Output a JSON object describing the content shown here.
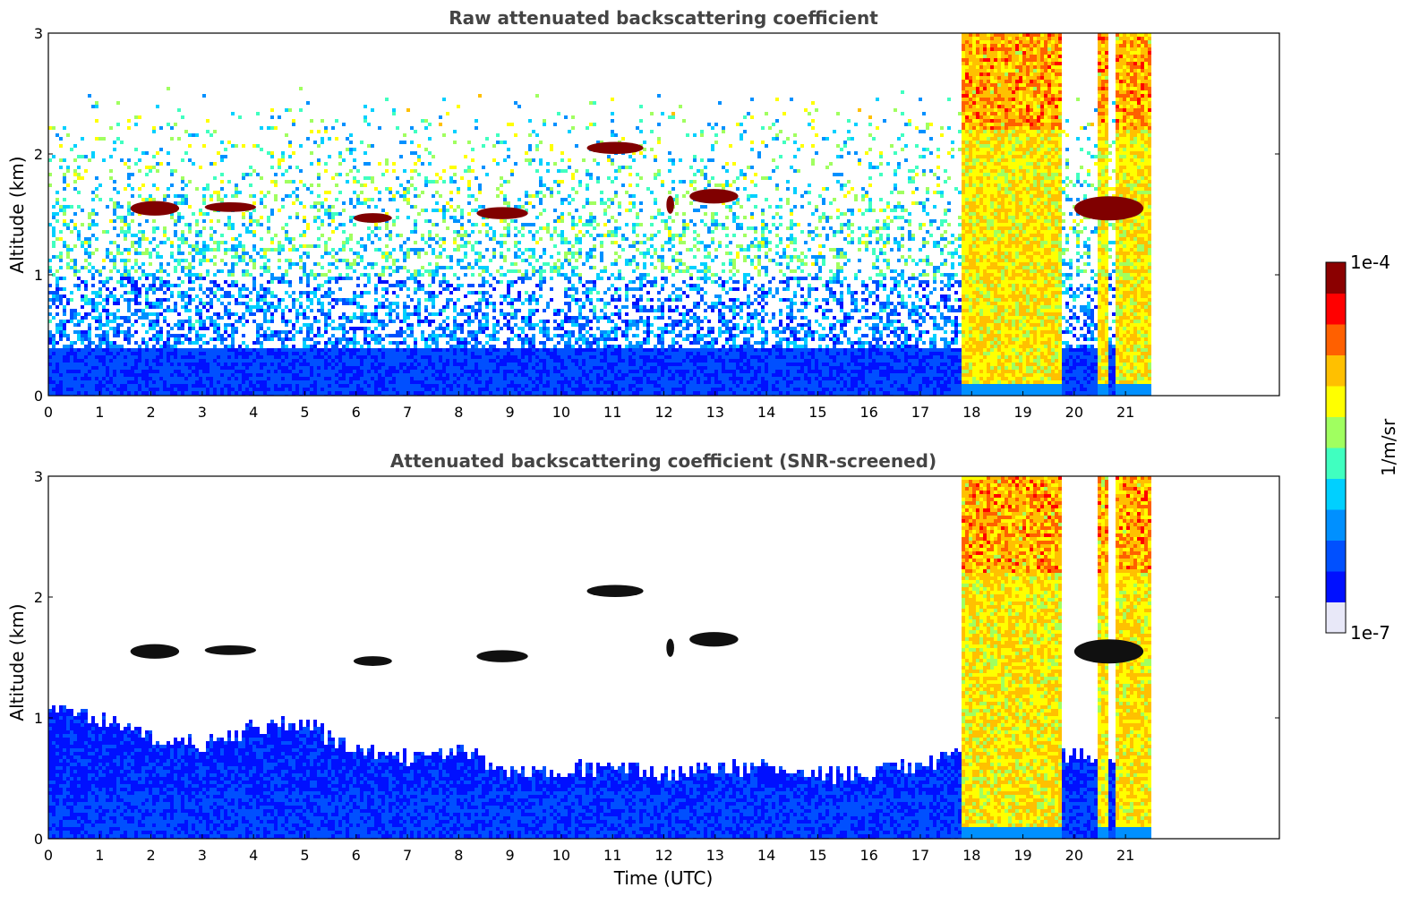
{
  "colors": {
    "cmap": [
      "#e8e8f8",
      "#0010ff",
      "#0050ff",
      "#0090ff",
      "#00d0ff",
      "#40ffc0",
      "#a0ff60",
      "#ffff00",
      "#ffc000",
      "#ff6000",
      "#ff0000",
      "#8b0000"
    ],
    "cloud_dark": "#800000",
    "cloud_black": "#101010",
    "background": "#ffffff"
  },
  "chart_data": [
    {
      "type": "heatmap",
      "title": "Raw attenuated backscattering coefficient",
      "xlabel": "",
      "ylabel": "Altitude (km)",
      "xlim": [
        0,
        24
      ],
      "ylim": [
        0,
        3
      ],
      "xticks": [
        "0",
        "1",
        "2",
        "3",
        "4",
        "5",
        "6",
        "7",
        "8",
        "9",
        "10",
        "11",
        "12",
        "13",
        "14",
        "15",
        "16",
        "17",
        "18",
        "19",
        "20",
        "21"
      ],
      "yticks": [
        "0",
        "1",
        "2",
        "3"
      ],
      "data_end_time": 21.45,
      "screened": false,
      "boundary_layer_top_km": 0.45,
      "cloud_layers": [
        {
          "t0": 1.6,
          "t1": 2.55,
          "alt": 1.55,
          "thickness": 0.12
        },
        {
          "t0": 3.05,
          "t1": 4.05,
          "alt": 1.56,
          "thickness": 0.08
        },
        {
          "t0": 5.95,
          "t1": 6.7,
          "alt": 1.47,
          "thickness": 0.08
        },
        {
          "t0": 8.35,
          "t1": 9.35,
          "alt": 1.51,
          "thickness": 0.1
        },
        {
          "t0": 10.5,
          "t1": 11.6,
          "alt": 2.05,
          "thickness": 0.1
        },
        {
          "t0": 12.05,
          "t1": 12.2,
          "alt": 1.58,
          "thickness": 0.15
        },
        {
          "t0": 12.5,
          "t1": 13.45,
          "alt": 1.65,
          "thickness": 0.12
        },
        {
          "t0": 20.0,
          "t1": 21.35,
          "alt": 1.55,
          "thickness": 0.2
        }
      ],
      "high_signal_intervals": [
        [
          17.8,
          19.7
        ],
        [
          20.45,
          20.65
        ],
        [
          20.8,
          21.45
        ]
      ]
    },
    {
      "type": "heatmap",
      "title": "Attenuated backscattering coefficient (SNR-screened)",
      "xlabel": "Time (UTC)",
      "ylabel": "Altitude (km)",
      "xlim": [
        0,
        24
      ],
      "ylim": [
        0,
        3
      ],
      "xticks": [
        "0",
        "1",
        "2",
        "3",
        "4",
        "5",
        "6",
        "7",
        "8",
        "9",
        "10",
        "11",
        "12",
        "13",
        "14",
        "15",
        "16",
        "17",
        "18",
        "19",
        "20",
        "21"
      ],
      "yticks": [
        "0",
        "1",
        "2",
        "3"
      ],
      "data_end_time": 21.45,
      "screened": true,
      "screened_top_profile": [
        [
          0,
          1.15
        ],
        [
          1,
          1.0
        ],
        [
          2,
          0.85
        ],
        [
          3,
          0.8
        ],
        [
          4,
          0.95
        ],
        [
          5,
          0.95
        ],
        [
          6,
          0.75
        ],
        [
          7,
          0.7
        ],
        [
          8,
          0.75
        ],
        [
          9,
          0.55
        ],
        [
          10,
          0.6
        ],
        [
          11,
          0.6
        ],
        [
          12,
          0.55
        ],
        [
          13,
          0.6
        ],
        [
          14,
          0.6
        ],
        [
          15,
          0.55
        ],
        [
          16,
          0.55
        ],
        [
          17,
          0.65
        ],
        [
          17.7,
          0.7
        ]
      ],
      "cloud_layers": [
        {
          "t0": 1.6,
          "t1": 2.55,
          "alt": 1.55,
          "thickness": 0.12
        },
        {
          "t0": 3.05,
          "t1": 4.05,
          "alt": 1.56,
          "thickness": 0.08
        },
        {
          "t0": 5.95,
          "t1": 6.7,
          "alt": 1.47,
          "thickness": 0.08
        },
        {
          "t0": 8.35,
          "t1": 9.35,
          "alt": 1.51,
          "thickness": 0.1
        },
        {
          "t0": 10.5,
          "t1": 11.6,
          "alt": 2.05,
          "thickness": 0.1
        },
        {
          "t0": 12.05,
          "t1": 12.2,
          "alt": 1.58,
          "thickness": 0.15
        },
        {
          "t0": 12.5,
          "t1": 13.45,
          "alt": 1.65,
          "thickness": 0.12
        },
        {
          "t0": 20.0,
          "t1": 21.35,
          "alt": 1.55,
          "thickness": 0.2
        }
      ],
      "high_signal_intervals": [
        [
          17.8,
          19.7
        ],
        [
          20.45,
          20.65
        ],
        [
          20.8,
          21.45
        ]
      ]
    }
  ],
  "colorbar": {
    "max_label": "1e-4",
    "min_label": "1e-7",
    "unit_label": "1/m/sr",
    "scale": "log"
  }
}
